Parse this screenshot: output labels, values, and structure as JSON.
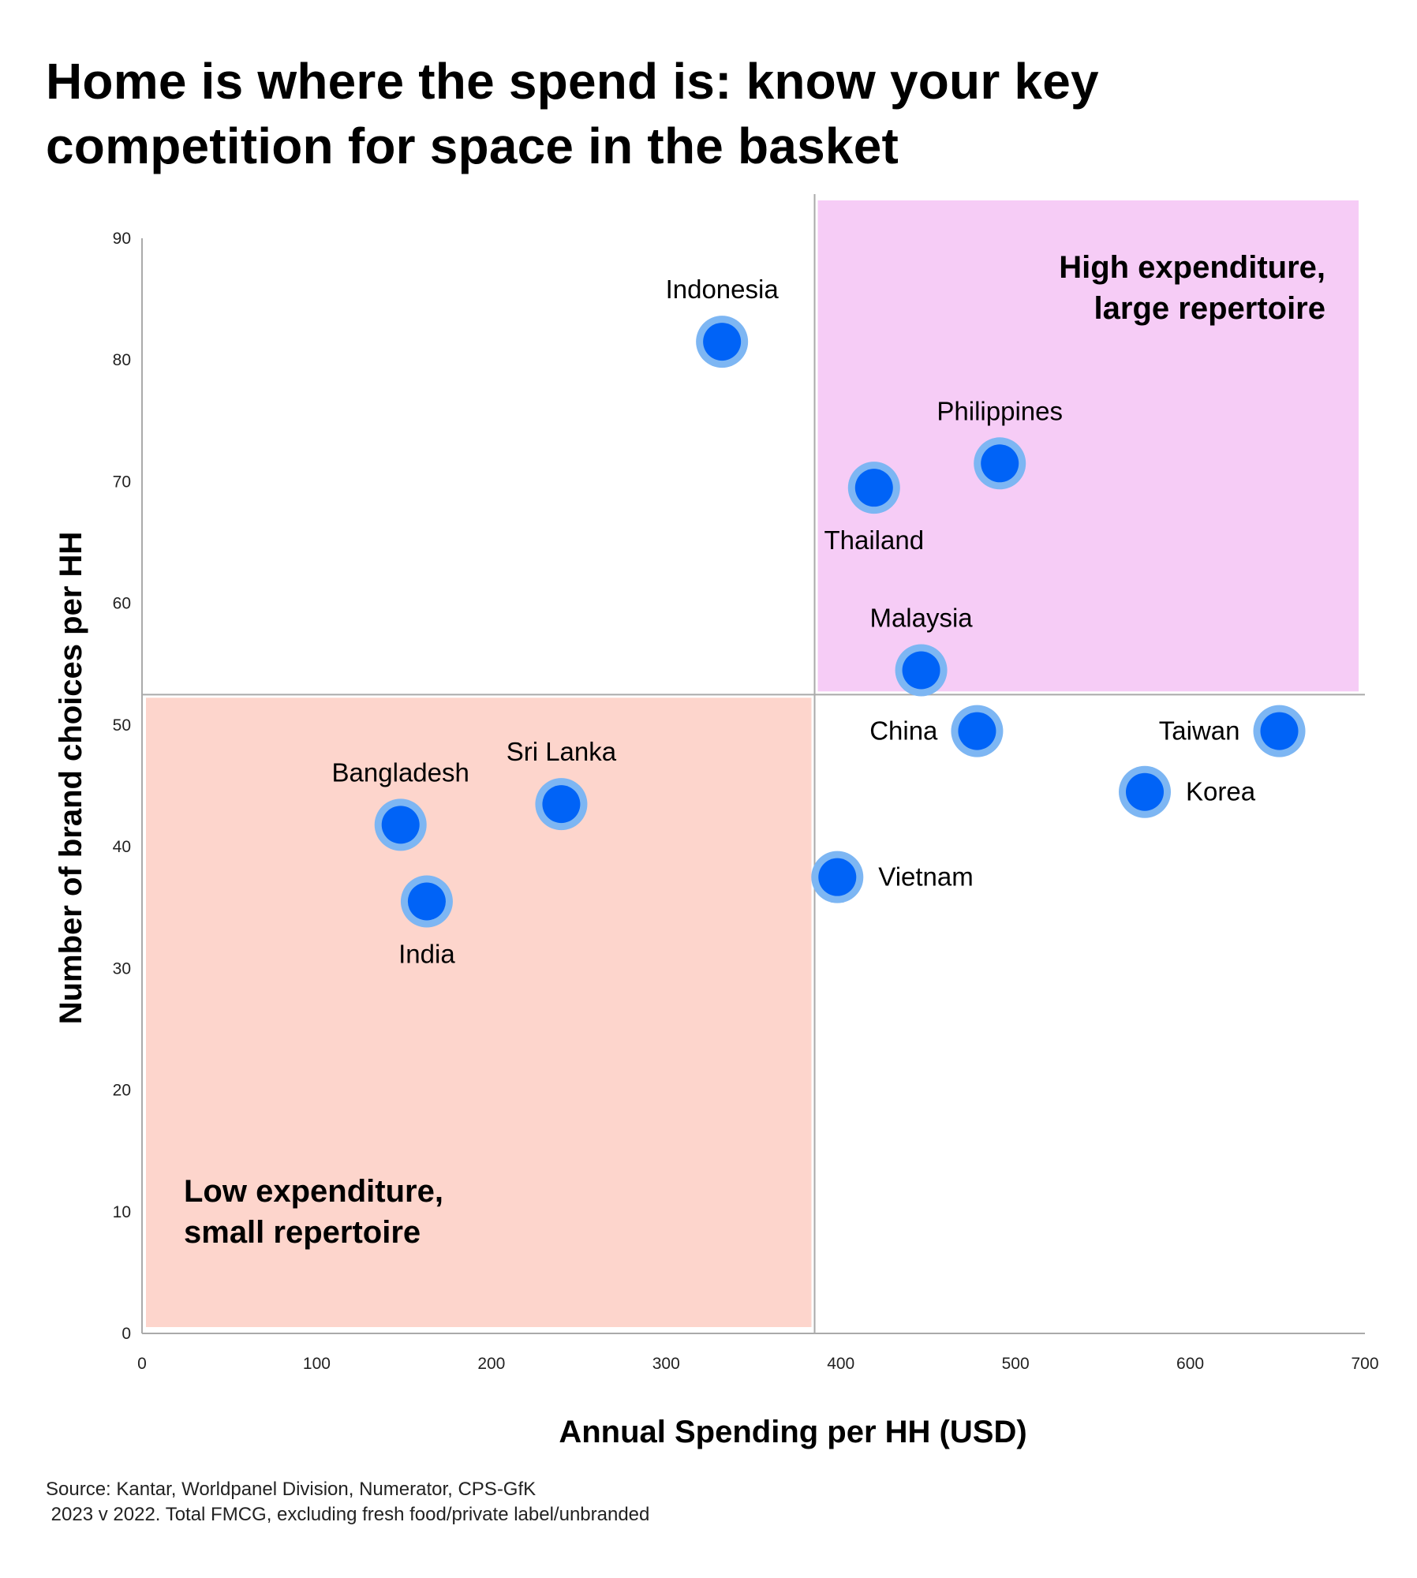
{
  "title": "Home is where the spend is: know your key competition for space in the basket",
  "source": {
    "line1": "Source: Kantar, Worldpanel Division, Numerator, CPS-GfK",
    "line2": " 2023 v 2022. Total FMCG, excluding fresh food/private label/unbranded"
  },
  "chart_data": {
    "type": "scatter",
    "xlabel": "Annual Spending per HH (USD)",
    "ylabel": "Number of brand choices per HH",
    "xlim": [
      0,
      700
    ],
    "ylim": [
      0,
      90
    ],
    "xticks": [
      0,
      100,
      200,
      300,
      400,
      500,
      600,
      700
    ],
    "yticks": [
      0,
      10,
      20,
      30,
      40,
      50,
      60,
      70,
      80,
      90
    ],
    "divider": {
      "x": 385,
      "y": 52.5
    },
    "quadrants": [
      {
        "position": "top-right",
        "label_lines": [
          "High expenditure,",
          "large repertoire"
        ],
        "color": "#f6ccf6"
      },
      {
        "position": "bottom-left",
        "label_lines": [
          "Low expenditure,",
          "small repertoire"
        ],
        "color": "#fdd5cc"
      }
    ],
    "colors": {
      "point": "#0063f7",
      "point_ring": "#7db6f3",
      "axis": "#aaaaaa"
    },
    "points": [
      {
        "label": "Indonesia",
        "x": 332,
        "y": 81.5,
        "label_pos": "above"
      },
      {
        "label": "Philippines",
        "x": 491,
        "y": 71.5,
        "label_pos": "above"
      },
      {
        "label": "Thailand",
        "x": 419,
        "y": 69.5,
        "label_pos": "below"
      },
      {
        "label": "Malaysia",
        "x": 446,
        "y": 54.5,
        "label_pos": "above"
      },
      {
        "label": "China",
        "x": 478,
        "y": 49.5,
        "label_pos": "left"
      },
      {
        "label": "Taiwan",
        "x": 651,
        "y": 49.5,
        "label_pos": "left"
      },
      {
        "label": "Korea",
        "x": 574,
        "y": 44.5,
        "label_pos": "right"
      },
      {
        "label": "Sri Lanka",
        "x": 240,
        "y": 43.5,
        "label_pos": "above"
      },
      {
        "label": "Bangladesh",
        "x": 148,
        "y": 41.8,
        "label_pos": "above"
      },
      {
        "label": "India",
        "x": 163,
        "y": 35.5,
        "label_pos": "below"
      },
      {
        "label": "Vietnam",
        "x": 398,
        "y": 37.5,
        "label_pos": "right"
      }
    ]
  }
}
